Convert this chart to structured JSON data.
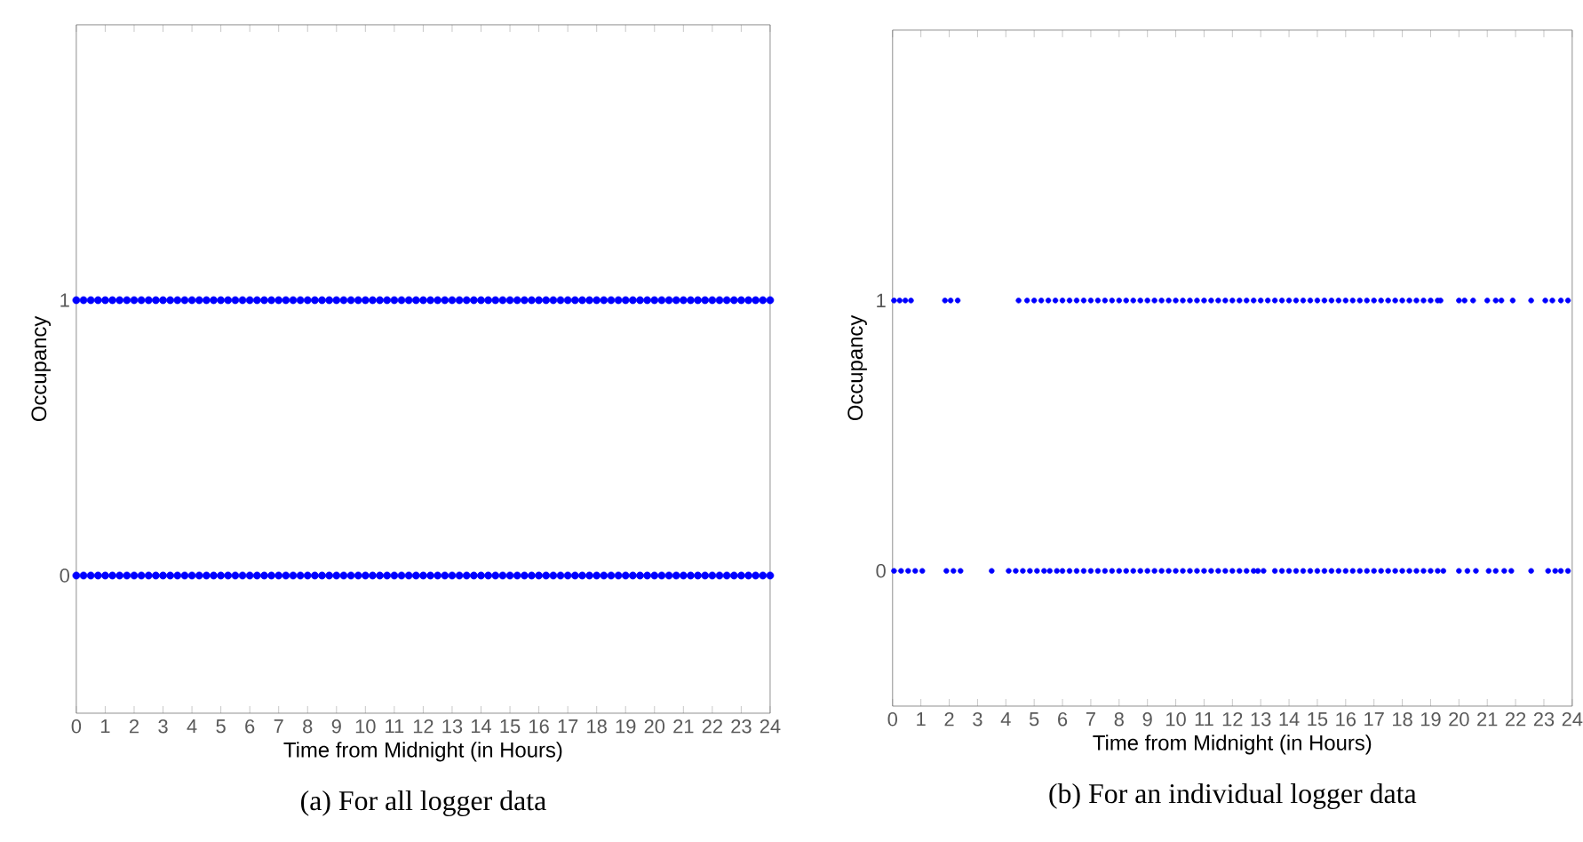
{
  "chart_data": [
    {
      "type": "scatter",
      "xlabel": "Time from Midnight (in Hours)",
      "ylabel": "Occupancy",
      "annotations": [
        "(a) For all logger data"
      ],
      "xlim": [
        0,
        24
      ],
      "ylim": [
        -0.5,
        2
      ],
      "xticks": [
        0,
        1,
        2,
        3,
        4,
        5,
        6,
        7,
        8,
        9,
        10,
        11,
        12,
        13,
        14,
        15,
        16,
        17,
        18,
        19,
        20,
        21,
        22,
        23,
        24
      ],
      "yticks": [
        0,
        1
      ],
      "x": [
        0,
        0.25,
        0.5,
        0.75,
        1,
        1.25,
        1.5,
        1.75,
        2,
        2.25,
        2.5,
        2.75,
        3,
        3.25,
        3.5,
        3.75,
        4,
        4.25,
        4.5,
        4.75,
        5,
        5.25,
        5.5,
        5.75,
        6,
        6.25,
        6.5,
        6.75,
        7,
        7.25,
        7.5,
        7.75,
        8,
        8.25,
        8.5,
        8.75,
        9,
        9.25,
        9.5,
        9.75,
        10,
        10.25,
        10.5,
        10.75,
        11,
        11.25,
        11.5,
        11.75,
        12,
        12.25,
        12.5,
        12.75,
        13,
        13.25,
        13.5,
        13.75,
        14,
        14.25,
        14.5,
        14.75,
        15,
        15.25,
        15.5,
        15.75,
        16,
        16.25,
        16.5,
        16.75,
        17,
        17.25,
        17.5,
        17.75,
        18,
        18.25,
        18.5,
        18.75,
        19,
        19.25,
        19.5,
        19.75,
        20,
        20.25,
        20.5,
        20.75,
        21,
        21.25,
        21.5,
        21.75,
        22,
        22.25,
        22.5,
        22.75,
        23,
        23.25,
        23.5,
        23.75,
        24
      ],
      "series": [
        {
          "color": "#0000ff",
          "values": [
            1,
            1,
            1,
            1,
            1,
            1,
            1,
            1,
            1,
            1,
            1,
            1,
            1,
            1,
            1,
            1,
            1,
            1,
            1,
            1,
            1,
            1,
            1,
            1,
            1,
            1,
            1,
            1,
            1,
            1,
            1,
            1,
            1,
            1,
            1,
            1,
            1,
            1,
            1,
            1,
            1,
            1,
            1,
            1,
            1,
            1,
            1,
            1,
            1,
            1,
            1,
            1,
            1,
            1,
            1,
            1,
            1,
            1,
            1,
            1,
            1,
            1,
            1,
            1,
            1,
            1,
            1,
            1,
            1,
            1,
            1,
            1,
            1,
            1,
            1,
            1,
            1,
            1,
            1,
            1,
            1,
            1,
            1,
            1,
            1,
            1,
            1,
            1,
            1,
            1,
            1,
            1,
            1,
            1,
            1,
            1,
            1
          ]
        },
        {
          "color": "#0000ff",
          "values": [
            0,
            0,
            0,
            0,
            0,
            0,
            0,
            0,
            0,
            0,
            0,
            0,
            0,
            0,
            0,
            0,
            0,
            0,
            0,
            0,
            0,
            0,
            0,
            0,
            0,
            0,
            0,
            0,
            0,
            0,
            0,
            0,
            0,
            0,
            0,
            0,
            0,
            0,
            0,
            0,
            0,
            0,
            0,
            0,
            0,
            0,
            0,
            0,
            0,
            0,
            0,
            0,
            0,
            0,
            0,
            0,
            0,
            0,
            0,
            0,
            0,
            0,
            0,
            0,
            0,
            0,
            0,
            0,
            0,
            0,
            0,
            0,
            0,
            0,
            0,
            0,
            0,
            0,
            0,
            0,
            0,
            0,
            0,
            0,
            0,
            0,
            0,
            0,
            0,
            0,
            0,
            0,
            0,
            0,
            0,
            0,
            0
          ]
        }
      ]
    },
    {
      "type": "scatter",
      "xlabel": "Time from Midnight (in Hours)",
      "ylabel": "Occupancy",
      "annotations": [
        "(b) For an individual logger data"
      ],
      "xlim": [
        0,
        24
      ],
      "ylim": [
        -0.5,
        2
      ],
      "xticks": [
        0,
        1,
        2,
        3,
        4,
        5,
        6,
        7,
        8,
        9,
        10,
        11,
        12,
        13,
        14,
        15,
        16,
        17,
        18,
        19,
        20,
        21,
        22,
        23,
        24
      ],
      "yticks": [
        0,
        1
      ],
      "series": [
        {
          "color": "#0000ff",
          "x": [
            0.05,
            0.25,
            0.45,
            0.65,
            1.85,
            2.05,
            2.3,
            4.45,
            4.75,
            5,
            5.25,
            5.5,
            5.75,
            6,
            6.25,
            6.5,
            6.75,
            7,
            7.25,
            7.5,
            7.75,
            8,
            8.25,
            8.5,
            8.75,
            9,
            9.25,
            9.5,
            9.75,
            10,
            10.25,
            10.5,
            10.75,
            11,
            11.25,
            11.5,
            11.75,
            12,
            12.25,
            12.5,
            12.75,
            13,
            13.25,
            13.5,
            13.75,
            14,
            14.25,
            14.5,
            14.75,
            15,
            15.25,
            15.5,
            15.75,
            16,
            16.25,
            16.5,
            16.75,
            17,
            17.25,
            17.5,
            17.75,
            18,
            18.25,
            18.5,
            18.75,
            19,
            19.25,
            19.35,
            20,
            20.2,
            20.5,
            21,
            21.3,
            21.5,
            21.9,
            22.55,
            23.05,
            23.3,
            23.6,
            23.85
          ],
          "values": [
            1,
            1,
            1,
            1,
            1,
            1,
            1,
            1,
            1,
            1,
            1,
            1,
            1,
            1,
            1,
            1,
            1,
            1,
            1,
            1,
            1,
            1,
            1,
            1,
            1,
            1,
            1,
            1,
            1,
            1,
            1,
            1,
            1,
            1,
            1,
            1,
            1,
            1,
            1,
            1,
            1,
            1,
            1,
            1,
            1,
            1,
            1,
            1,
            1,
            1,
            1,
            1,
            1,
            1,
            1,
            1,
            1,
            1,
            1,
            1,
            1,
            1,
            1,
            1,
            1,
            1,
            1,
            1,
            1,
            1,
            1,
            1,
            1,
            1,
            1,
            1,
            1,
            1,
            1,
            1
          ]
        },
        {
          "color": "#0000ff",
          "x": [
            0.05,
            0.3,
            0.55,
            0.8,
            1.05,
            1.9,
            2.15,
            2.4,
            3.5,
            4.1,
            4.35,
            4.6,
            4.85,
            5.1,
            5.35,
            5.55,
            5.8,
            6,
            6.25,
            6.5,
            6.75,
            7,
            7.25,
            7.5,
            7.75,
            8,
            8.25,
            8.5,
            8.75,
            9,
            9.25,
            9.5,
            9.75,
            10,
            10.25,
            10.5,
            10.75,
            11,
            11.25,
            11.5,
            11.75,
            12,
            12.25,
            12.5,
            12.75,
            12.9,
            13.1,
            13.5,
            13.75,
            14,
            14.25,
            14.5,
            14.75,
            15,
            15.25,
            15.5,
            15.75,
            16,
            16.25,
            16.5,
            16.75,
            17,
            17.25,
            17.5,
            17.75,
            18,
            18.25,
            18.5,
            18.75,
            19,
            19.25,
            19.45,
            20,
            20.3,
            20.6,
            21.05,
            21.3,
            21.6,
            21.85,
            22.55,
            23.15,
            23.4,
            23.6,
            23.85
          ],
          "values": [
            0,
            0,
            0,
            0,
            0,
            0,
            0,
            0,
            0,
            0,
            0,
            0,
            0,
            0,
            0,
            0,
            0,
            0,
            0,
            0,
            0,
            0,
            0,
            0,
            0,
            0,
            0,
            0,
            0,
            0,
            0,
            0,
            0,
            0,
            0,
            0,
            0,
            0,
            0,
            0,
            0,
            0,
            0,
            0,
            0,
            0,
            0,
            0,
            0,
            0,
            0,
            0,
            0,
            0,
            0,
            0,
            0,
            0,
            0,
            0,
            0,
            0,
            0,
            0,
            0,
            0,
            0,
            0,
            0,
            0,
            0,
            0,
            0,
            0,
            0,
            0,
            0,
            0,
            0,
            0,
            0,
            0,
            0,
            0
          ]
        }
      ]
    }
  ]
}
